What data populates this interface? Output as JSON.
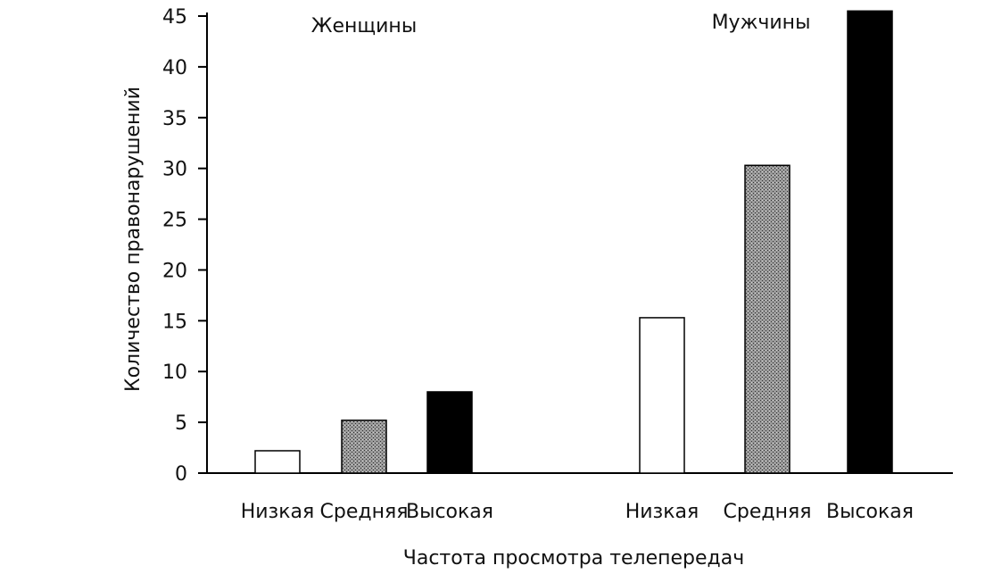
{
  "chart_data": {
    "type": "bar",
    "title": "",
    "xlabel": "Частота просмотра телепередач",
    "ylabel": "Количество правонарушений",
    "ylim": [
      0,
      45
    ],
    "yticks": [
      0,
      5,
      10,
      15,
      20,
      25,
      30,
      35,
      40,
      45
    ],
    "grid": false,
    "legend": "none",
    "groups": [
      {
        "name": "Женщины",
        "categories": [
          "Низкая",
          "Средняя",
          "Высокая"
        ],
        "values": [
          2.2,
          5.2,
          8.0
        ]
      },
      {
        "name": "Мужчины",
        "categories": [
          "Низкая",
          "Средняя",
          "Высокая"
        ],
        "values": [
          15.3,
          30.3,
          45.5
        ]
      }
    ],
    "bar_fills": [
      "#ffffff",
      "#8a8a8a",
      "#000000"
    ]
  }
}
